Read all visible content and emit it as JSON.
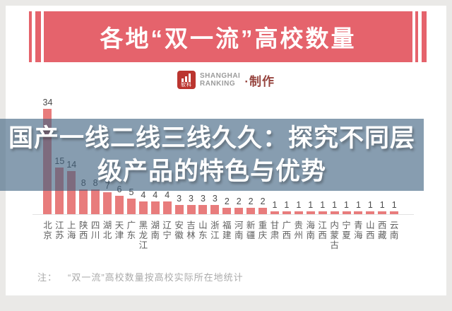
{
  "banner": {
    "title": "各地“双一流”高校数量"
  },
  "logo": {
    "icon": "bar-chart-logo",
    "brand_cn": "软科",
    "brand_line1": "SHANGHAI",
    "brand_line2": "RANKING",
    "suffix": "·制作"
  },
  "overlay": {
    "line1": "国产一线二线三线久久：探究不同层",
    "line2": "级产品的特色与优势"
  },
  "note": {
    "prefix": "注：",
    "text": "“双一流”高校数量按高校实际所在地统计"
  },
  "chart_data": {
    "type": "bar",
    "title": "各地“双一流”高校数量",
    "categories": [
      "北京",
      "江苏",
      "上海",
      "陕西",
      "四川",
      "湖北",
      "天津",
      "广东",
      "黑龙江",
      "湖南",
      "辽宁",
      "安徽",
      "吉林",
      "山东",
      "浙江",
      "福建",
      "河南",
      "新疆",
      "重庆",
      "甘肃",
      "广西",
      "贵州",
      "海南",
      "江西",
      "内蒙古",
      "宁夏",
      "青海",
      "山西",
      "西藏",
      "云南"
    ],
    "values": [
      34,
      15,
      14,
      8,
      8,
      7,
      6,
      5,
      4,
      4,
      4,
      3,
      3,
      3,
      3,
      2,
      2,
      2,
      2,
      1,
      1,
      1,
      1,
      1,
      1,
      1,
      1,
      1,
      1,
      1
    ],
    "xlabel": "",
    "ylabel": "",
    "ylim": [
      0,
      34
    ],
    "grid": false,
    "legend": false,
    "data_labels": true
  },
  "colors": {
    "page_bg": "#eae9e7",
    "banner_red": "#e5636c",
    "bar_red": "#e87c7c",
    "logo_red": "#bb352f",
    "maker_red": "#96443e",
    "overlay_blue": "rgba(62,97,128,0.62)"
  }
}
